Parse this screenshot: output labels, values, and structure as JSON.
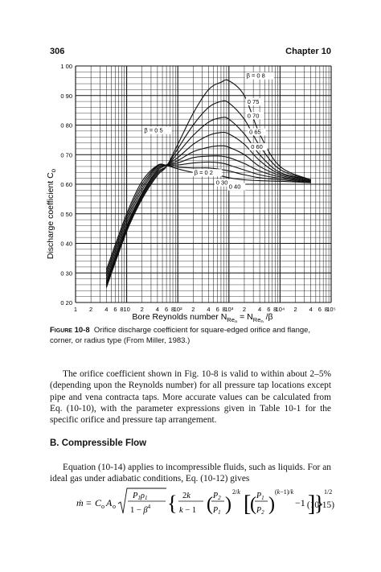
{
  "header": {
    "page_number": "306",
    "chapter": "Chapter 10"
  },
  "chart_data": {
    "type": "line",
    "xlabel": "Bore Reynolds number N",
    "xlabel_sub1": "Re",
    "xlabel_sub1b": "o",
    "xlabel_mid": " = N",
    "xlabel_sub2": "Re",
    "xlabel_sub2b": "p",
    "xlabel_end": " /β",
    "ylabel": "Discharge coefficient C",
    "ylabel_sub": "o",
    "x_scale": "log",
    "xlim": [
      1,
      100000
    ],
    "ylim": [
      0.2,
      1.0
    ],
    "grid": true,
    "ytick_labels": [
      "0 20",
      "0 30",
      "0 40",
      "0 50",
      "0 60",
      "0 70",
      "0 80",
      "0 90",
      "1 00"
    ],
    "yticks": [
      0.2,
      0.3,
      0.4,
      0.5,
      0.6,
      0.7,
      0.8,
      0.9,
      1.0
    ],
    "xtick_labels": [
      {
        "x": 1,
        "t": "1"
      },
      {
        "x": 2,
        "t": "2"
      },
      {
        "x": 4,
        "t": "4"
      },
      {
        "x": 6,
        "t": "6"
      },
      {
        "x": 8,
        "t": "8"
      },
      {
        "x": 10,
        "t": "10"
      },
      {
        "x": 20,
        "t": "2"
      },
      {
        "x": 40,
        "t": "4"
      },
      {
        "x": 60,
        "t": "6"
      },
      {
        "x": 80,
        "t": "8"
      },
      {
        "x": 100,
        "t": "10²"
      },
      {
        "x": 200,
        "t": "2"
      },
      {
        "x": 400,
        "t": "4"
      },
      {
        "x": 600,
        "t": "6"
      },
      {
        "x": 800,
        "t": "8"
      },
      {
        "x": 1000,
        "t": "10³"
      },
      {
        "x": 2000,
        "t": "2"
      },
      {
        "x": 4000,
        "t": "4"
      },
      {
        "x": 6000,
        "t": "6"
      },
      {
        "x": 8000,
        "t": "8"
      },
      {
        "x": 10000,
        "t": "10⁴"
      },
      {
        "x": 20000,
        "t": "2"
      },
      {
        "x": 40000,
        "t": "4"
      },
      {
        "x": 60000,
        "t": "6"
      },
      {
        "x": 80000,
        "t": "8"
      },
      {
        "x": 100000,
        "t": "10⁵"
      }
    ],
    "annotations": [
      {
        "text": "β = 0 8",
        "x": 2200,
        "y": 0.96
      },
      {
        "text": "0 75",
        "x": 2300,
        "y": 0.872
      },
      {
        "text": "0 70",
        "x": 2300,
        "y": 0.825
      },
      {
        "text": "0 65",
        "x": 2500,
        "y": 0.77
      },
      {
        "text": "0 60",
        "x": 2700,
        "y": 0.72
      },
      {
        "text": "β = 0 5",
        "x": 22,
        "y": 0.775
      },
      {
        "text": "β = 0 2",
        "x": 210,
        "y": 0.632
      },
      {
        "text": "0 30",
        "x": 560,
        "y": 0.598
      },
      {
        "text": "0 40",
        "x": 1000,
        "y": 0.585
      }
    ],
    "series": [
      {
        "x": [
          4,
          10,
          20,
          40,
          60,
          100,
          200,
          400,
          700,
          1000,
          2000,
          4000,
          10000,
          40000
        ],
        "values": [
          0.25,
          0.44,
          0.55,
          0.63,
          0.66,
          0.735,
          0.84,
          0.92,
          0.945,
          0.95,
          0.9,
          0.77,
          0.66,
          0.615
        ]
      },
      {
        "x": [
          4,
          10,
          20,
          40,
          60,
          100,
          200,
          400,
          700,
          1000,
          2000,
          4000,
          10000,
          40000
        ],
        "values": [
          0.255,
          0.445,
          0.555,
          0.635,
          0.66,
          0.72,
          0.8,
          0.86,
          0.88,
          0.875,
          0.82,
          0.73,
          0.65,
          0.615
        ]
      },
      {
        "x": [
          4,
          10,
          20,
          40,
          60,
          100,
          200,
          400,
          700,
          1000,
          2000,
          4000,
          10000,
          40000
        ],
        "values": [
          0.26,
          0.45,
          0.56,
          0.64,
          0.66,
          0.705,
          0.765,
          0.81,
          0.825,
          0.82,
          0.77,
          0.7,
          0.64,
          0.615
        ]
      },
      {
        "x": [
          4,
          10,
          20,
          40,
          60,
          100,
          200,
          400,
          700,
          1000,
          2000,
          4000,
          10000,
          40000
        ],
        "values": [
          0.265,
          0.455,
          0.565,
          0.645,
          0.665,
          0.69,
          0.735,
          0.765,
          0.775,
          0.77,
          0.735,
          0.68,
          0.635,
          0.615
        ]
      },
      {
        "x": [
          4,
          10,
          20,
          40,
          60,
          100,
          200,
          400,
          700,
          1000,
          2000,
          4000,
          10000,
          40000
        ],
        "values": [
          0.27,
          0.46,
          0.57,
          0.65,
          0.665,
          0.68,
          0.71,
          0.725,
          0.73,
          0.725,
          0.7,
          0.66,
          0.63,
          0.612
        ]
      },
      {
        "x": [
          4,
          10,
          20,
          40,
          60,
          100,
          200,
          400,
          700,
          1000,
          2000,
          4000,
          10000,
          40000
        ],
        "values": [
          0.28,
          0.47,
          0.58,
          0.655,
          0.665,
          0.672,
          0.69,
          0.695,
          0.695,
          0.69,
          0.67,
          0.645,
          0.625,
          0.61
        ]
      },
      {
        "x": [
          4,
          10,
          20,
          40,
          60,
          100,
          200,
          400,
          700,
          1000,
          2000,
          4000,
          10000,
          40000
        ],
        "values": [
          0.29,
          0.48,
          0.59,
          0.66,
          0.665,
          0.665,
          0.672,
          0.675,
          0.672,
          0.665,
          0.648,
          0.632,
          0.62,
          0.608
        ]
      },
      {
        "x": [
          4,
          10,
          20,
          40,
          60,
          100,
          200,
          400,
          700,
          1000,
          2000,
          4000,
          10000,
          40000
        ],
        "values": [
          0.3,
          0.49,
          0.6,
          0.662,
          0.664,
          0.658,
          0.655,
          0.655,
          0.65,
          0.645,
          0.632,
          0.622,
          0.615,
          0.606
        ]
      },
      {
        "x": [
          4,
          10,
          20,
          40,
          60,
          100,
          200,
          400,
          700,
          1000,
          2000,
          4000,
          10000,
          40000
        ],
        "values": [
          0.31,
          0.5,
          0.61,
          0.664,
          0.663,
          0.652,
          0.64,
          0.635,
          0.628,
          0.622,
          0.615,
          0.612,
          0.61,
          0.605
        ]
      }
    ]
  },
  "caption": {
    "label": "Figure 10-8",
    "text": "Orifice discharge coefficient for square-edged orifice and flange, corner, or radius type (From Miller, 1983.)"
  },
  "para1": "The orifice coefficient shown in Fig. 10-8 is valid to within about 2–5% (depending upon the Reynolds number) for all pressure tap locations except pipe and vena contracta taps. More accurate values can be calculated from Eq. (10-10), with the parameter expressions given in Table 10-1 for the specific orifice and pressure tap arrangement.",
  "section": "B. Compressible Flow",
  "para2": "Equation (10-14) applies to incompressible fluids, such as liquids. For an ideal gas under adiabatic conditions, Eq. (10-12) gives",
  "equation_number": "(10-15)"
}
